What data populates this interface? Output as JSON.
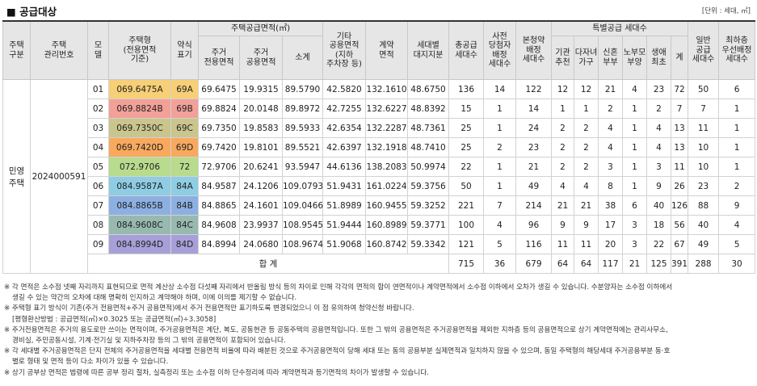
{
  "header": {
    "title": "■ 공급대상",
    "unit": "[단위 : 세대, ㎡]"
  },
  "table": {
    "h": {
      "house_type": "주택\n구분",
      "mgmt_no": "주택\n관리번호",
      "model": "모\n델",
      "type": "주택형\n(전용면적\n기준)",
      "abbr": "약식\n표기",
      "supply_area": "주택공급면적(㎡)",
      "exclusive": "주거\n전용면적",
      "common": "주거\n공용면적",
      "subtotal": "소계",
      "other_common": "기타\n공용면적\n(지하\n주차장 등)",
      "contract_area": "계약\n면적",
      "land_share": "세대별\n대지지분",
      "total_supply": "총공급\n세대수",
      "pre_winner": "사전\n당첨자\n배정\n세대수",
      "main_sub": "본청약\n배정\n세대수",
      "special": "특별공급 세대수",
      "sp_inst": "기관\n추천",
      "sp_multi": "다자녀\n가구",
      "sp_newly": "신혼\n부부",
      "sp_elder": "노부모\n부양",
      "sp_first": "생애\n최초",
      "sp_sum": "계",
      "general": "일반\n공급\n세대수",
      "min_priority": "최하층\n우선배정\n세대수"
    },
    "house_type_value": "민영\n주택",
    "mgmt_no_value": "2024000591",
    "rows": [
      {
        "model": "01",
        "type": "069.6475A",
        "abbr": "69A",
        "color": "#f7cf76",
        "exclusive": "69.6475",
        "common": "19.9315",
        "subtotal": "89.5790",
        "other": "42.5820",
        "contract": "132.1610",
        "land": "48.6750",
        "total": "136",
        "pre": "14",
        "main": "122",
        "inst": "12",
        "multi": "12",
        "newly": "21",
        "elder": "4",
        "first": "23",
        "spsum": "72",
        "general": "50",
        "minp": "6"
      },
      {
        "model": "02",
        "type": "069.8824B",
        "abbr": "69B",
        "color": "#f2a098",
        "exclusive": "69.8824",
        "common": "20.0148",
        "subtotal": "89.8972",
        "other": "42.7255",
        "contract": "132.6227",
        "land": "48.8392",
        "total": "15",
        "pre": "1",
        "main": "14",
        "inst": "1",
        "multi": "1",
        "newly": "2",
        "elder": "1",
        "first": "2",
        "spsum": "7",
        "general": "7",
        "minp": "1"
      },
      {
        "model": "03",
        "type": "069.7350C",
        "abbr": "69C",
        "color": "#c9c58d",
        "exclusive": "69.7350",
        "common": "19.8583",
        "subtotal": "89.5933",
        "other": "42.6354",
        "contract": "132.2287",
        "land": "48.7361",
        "total": "25",
        "pre": "1",
        "main": "24",
        "inst": "2",
        "multi": "2",
        "newly": "4",
        "elder": "1",
        "first": "4",
        "spsum": "13",
        "general": "11",
        "minp": "1"
      },
      {
        "model": "04",
        "type": "069.7420D",
        "abbr": "69D",
        "color": "#f8a95e",
        "exclusive": "69.7420",
        "common": "19.8101",
        "subtotal": "89.5521",
        "other": "42.6397",
        "contract": "132.1918",
        "land": "48.7410",
        "total": "25",
        "pre": "2",
        "main": "23",
        "inst": "2",
        "multi": "2",
        "newly": "4",
        "elder": "1",
        "first": "4",
        "spsum": "13",
        "general": "10",
        "minp": "1"
      },
      {
        "model": "05",
        "type": "072.9706",
        "abbr": "72",
        "color": "#b9db8d",
        "exclusive": "72.9706",
        "common": "20.6241",
        "subtotal": "93.5947",
        "other": "44.6136",
        "contract": "138.2083",
        "land": "50.9974",
        "total": "22",
        "pre": "1",
        "main": "21",
        "inst": "2",
        "multi": "2",
        "newly": "3",
        "elder": "1",
        "first": "3",
        "spsum": "11",
        "general": "10",
        "minp": "1"
      },
      {
        "model": "06",
        "type": "084.9587A",
        "abbr": "84A",
        "color": "#8ecde3",
        "exclusive": "84.9587",
        "common": "24.1206",
        "subtotal": "109.0793",
        "other": "51.9431",
        "contract": "161.0224",
        "land": "59.3756",
        "total": "50",
        "pre": "1",
        "main": "49",
        "inst": "4",
        "multi": "4",
        "newly": "8",
        "elder": "1",
        "first": "9",
        "spsum": "26",
        "general": "23",
        "minp": "2"
      },
      {
        "model": "07",
        "type": "084.8865B",
        "abbr": "84B",
        "color": "#8db0e2",
        "exclusive": "84.8865",
        "common": "24.1601",
        "subtotal": "109.0466",
        "other": "51.8989",
        "contract": "160.9455",
        "land": "59.3252",
        "total": "221",
        "pre": "7",
        "main": "214",
        "inst": "21",
        "multi": "21",
        "newly": "38",
        "elder": "6",
        "first": "40",
        "spsum": "126",
        "general": "88",
        "minp": "9"
      },
      {
        "model": "08",
        "type": "084.9608C",
        "abbr": "84C",
        "color": "#97b9b0",
        "exclusive": "84.9608",
        "common": "23.9937",
        "subtotal": "108.9545",
        "other": "51.9444",
        "contract": "160.8989",
        "land": "59.3771",
        "total": "100",
        "pre": "4",
        "main": "96",
        "inst": "9",
        "multi": "9",
        "newly": "17",
        "elder": "3",
        "first": "18",
        "spsum": "56",
        "general": "40",
        "minp": "4"
      },
      {
        "model": "09",
        "type": "084.8994D",
        "abbr": "84D",
        "color": "#a7a0d8",
        "exclusive": "84.8994",
        "common": "24.0680",
        "subtotal": "108.9674",
        "other": "51.9068",
        "contract": "160.8742",
        "land": "59.3342",
        "total": "121",
        "pre": "5",
        "main": "116",
        "inst": "11",
        "multi": "11",
        "newly": "20",
        "elder": "3",
        "first": "22",
        "spsum": "67",
        "general": "49",
        "minp": "5"
      }
    ],
    "total_label": "합 계",
    "totals": {
      "total": "715",
      "pre": "36",
      "main": "679",
      "inst": "64",
      "multi": "64",
      "newly": "117",
      "elder": "21",
      "first": "125",
      "spsum": "391",
      "general": "288",
      "minp": "30"
    }
  },
  "notes": [
    "※ 각 면적은 소수점 넷째 자리까지 표현되므로 면적 계산상 소수점 다섯째 자리에서 반올림 방식 등의 차이로 인해 각각의 면적의 합이 연면적이나 계약면적에서 소수점 이하에서 오차가 생길 수 있습니다. 수분양자는 소수점 이하에서",
    "생길 수 있는 약간의 오차에 대해 명확히 인지하고 계약해야 하며, 이에 이의를 제기할 수 없습니다.",
    "※ 주택형 표기 방식이 기존(주거 전용면적+주거 공용면적)에서 주거 전용면적만 표기하도록 변경되었으니 이 점 유의하여 청약신청 바랍니다.",
    "[평형환산방법 : 공급면적(㎡)×0.3025 또는 공급면적(㎡)÷3.3058]",
    "※ 주거전용면적은 주거의 용도로만 쓰이는 면적이며, 주거공용면적은 계단, 복도, 공동현관 등 공동주택의 공용면적입니다. 또한 그 밖의 공용면적은 주거공용면적을 제외한 지하층 등의 공용면적으로 상기 계약면적에는 관리사무소,",
    "경비실, 주민공동시설, 기계·전기실 및 지하주차장 등의 그 밖의 공용면적이 포함되어 있습니다.",
    "※ 각 세대별 주거공용면적은 단지 전체의 주거공용면적을 세대별 전용면적 비율에 따라 배분된 것으로 주거공용면적이 당해 세대 또는 동의 공용부분 실제면적과 일치하지 않을 수 있으며, 동일 주택형의 해당세대 주거공용부분 동·호",
    "별로 형태 및 면적 등이 다소 차이가 있을 수 있습니다.",
    "※ 상기 공부상 면적은 법령에 따른 공부 정리 절차, 실측정리 또는 소수점 이하 단수정리에 따라 계약면적과 등기면적의 차이가 발생할 수 있습니다."
  ]
}
